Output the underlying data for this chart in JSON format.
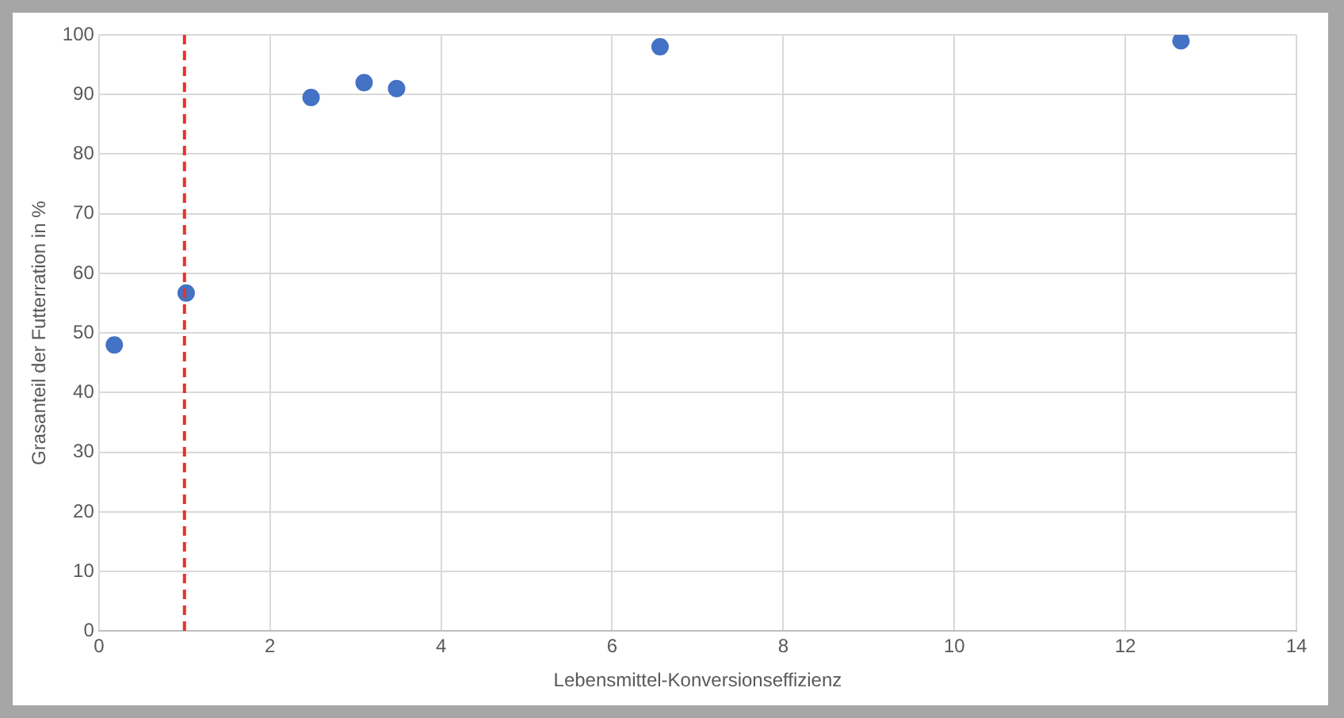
{
  "chart_data": {
    "type": "scatter",
    "xlabel": "Lebensmittel-Konversionseffizienz",
    "ylabel": "Grasanteil der Futterration in %",
    "x": [
      0.18,
      1.02,
      2.48,
      3.1,
      3.48,
      6.56,
      12.65
    ],
    "series": [
      {
        "color": "#4472c4",
        "values": [
          48,
          56.7,
          89.5,
          92,
          91,
          98,
          99
        ]
      }
    ],
    "xlim": [
      0,
      14
    ],
    "xticks": [
      0,
      2,
      4,
      6,
      8,
      10,
      12,
      14
    ],
    "ylim": [
      0,
      100
    ],
    "yticks": [
      0,
      10,
      20,
      30,
      40,
      50,
      60,
      70,
      80,
      90,
      100
    ],
    "ref_lines": [
      {
        "axis": "x",
        "value": 1,
        "color": "#e8322a",
        "line_style": "dashed"
      }
    ],
    "grid": true,
    "legend": false,
    "marker": "circle"
  }
}
